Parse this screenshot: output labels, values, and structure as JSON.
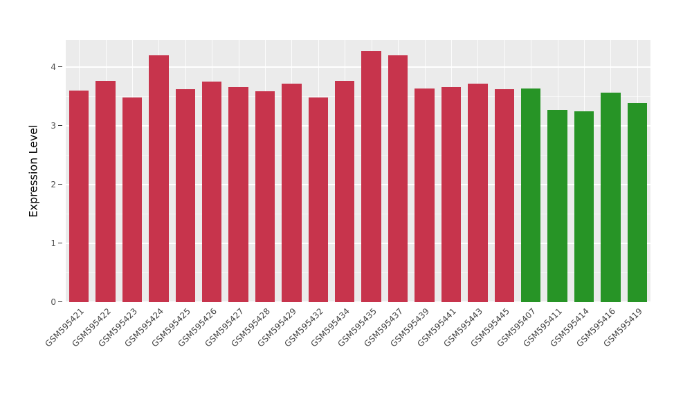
{
  "chart_data": {
    "type": "bar",
    "title": "",
    "xlabel": "",
    "ylabel": "Expression Level",
    "ylim": [
      0,
      4.46
    ],
    "yticks": [
      0,
      1,
      2,
      3,
      4
    ],
    "yticks_minor": [
      0.5,
      1.5,
      2.5,
      3.5
    ],
    "grid": true,
    "legend": "none",
    "panel_bg": "#EBEBEB",
    "grid_color": "#FFFFFF",
    "categories": [
      "GSM595421",
      "GSM595422",
      "GSM595423",
      "GSM595424",
      "GSM595425",
      "GSM595426",
      "GSM595427",
      "GSM595428",
      "GSM595429",
      "GSM595432",
      "GSM595434",
      "GSM595435",
      "GSM595437",
      "GSM595439",
      "GSM595441",
      "GSM595443",
      "GSM595445",
      "GSM595407",
      "GSM595411",
      "GSM595414",
      "GSM595416",
      "GSM595419"
    ],
    "values": [
      3.6,
      3.76,
      3.48,
      4.2,
      3.62,
      3.75,
      3.66,
      3.59,
      3.72,
      3.48,
      3.76,
      4.27,
      4.2,
      3.64,
      3.66,
      3.72,
      3.62,
      3.64,
      3.27,
      3.25,
      3.56,
      3.39
    ],
    "groups": [
      "red",
      "red",
      "red",
      "red",
      "red",
      "red",
      "red",
      "red",
      "red",
      "red",
      "red",
      "red",
      "red",
      "red",
      "red",
      "red",
      "red",
      "green",
      "green",
      "green",
      "green",
      "green"
    ],
    "colors": {
      "red": "#C7344C",
      "green": "#279426"
    }
  }
}
